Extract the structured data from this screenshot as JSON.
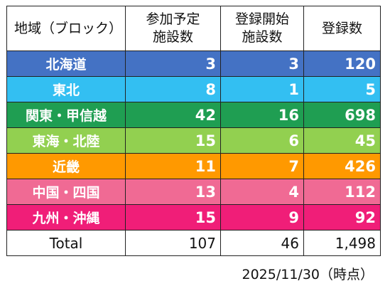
{
  "header": {
    "region": "地域（ブロック）",
    "participating_line1": "参加予定",
    "participating_line2": "施設数",
    "started_line1": "登録開始",
    "started_line2": "施設数",
    "registrations": "登録数"
  },
  "rows": [
    {
      "region": "北海道",
      "participating": "3",
      "started": "3",
      "registrations": "120",
      "color": "#4472C4"
    },
    {
      "region": "東北",
      "participating": "8",
      "started": "1",
      "registrations": "5",
      "color": "#33BFF2"
    },
    {
      "region": "関東・甲信越",
      "participating": "42",
      "started": "16",
      "registrations": "698",
      "color": "#1F9E52"
    },
    {
      "region": "東海・北陸",
      "participating": "15",
      "started": "6",
      "registrations": "45",
      "color": "#92D050"
    },
    {
      "region": "近畿",
      "participating": "11",
      "started": "7",
      "registrations": "426",
      "color": "#FF9900"
    },
    {
      "region": "中国・四国",
      "participating": "13",
      "started": "4",
      "registrations": "112",
      "color": "#F06A94"
    },
    {
      "region": "九州・沖縄",
      "participating": "15",
      "started": "9",
      "registrations": "92",
      "color": "#F01E78"
    }
  ],
  "total": {
    "label": "Total",
    "participating": "107",
    "started": "46",
    "registrations": "1,498"
  },
  "date_note": "2025/11/30（時点）"
}
